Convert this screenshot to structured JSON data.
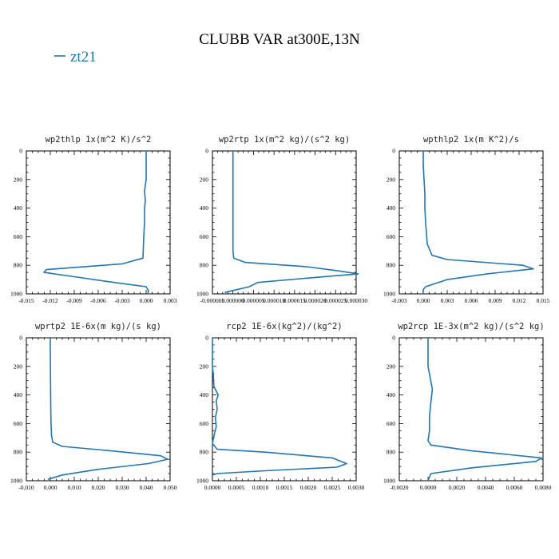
{
  "figure_title": "CLUBB VAR at300E,13N",
  "legend": {
    "label": "zt21",
    "color": "#1f77b4"
  },
  "chart_data": [
    {
      "type": "line",
      "title": "wp2thlp  1x(m^2 K)/s^2",
      "xlim": [
        -0.015,
        0.003
      ],
      "ylim": [
        1000,
        0
      ],
      "xticks": [
        -0.015,
        -0.012,
        -0.009,
        -0.006,
        -0.003,
        0.0,
        0.003
      ],
      "xtick_labels": [
        "-0.015",
        "-0.012",
        "-0.009",
        "-0.006",
        "-0.003",
        "0.000",
        "0.003"
      ],
      "yticks": [
        0,
        200,
        400,
        600,
        800,
        1000
      ],
      "ytick_labels": [
        "0",
        "200",
        "400",
        "600",
        "800",
        "1000"
      ],
      "series": [
        {
          "color": "#1f77b4",
          "x": [
            0.0,
            0.0,
            0.0,
            -0.0002,
            -0.0001,
            -0.0002,
            -0.0002,
            -0.0003,
            -0.0004,
            -0.003,
            -0.0125,
            -0.0128,
            -0.009,
            -0.004,
            0.0,
            0.0003,
            0.0002
          ],
          "y": [
            0,
            100,
            200,
            280,
            350,
            400,
            500,
            600,
            750,
            790,
            830,
            850,
            880,
            920,
            950,
            980,
            1000
          ]
        }
      ]
    },
    {
      "type": "line",
      "title": "wp2rtp  1x(m^2 kg)/(s^2 kg)",
      "xlim": [
        -5e-06,
        3e-05
      ],
      "ylim": [
        1000,
        0
      ],
      "xticks": [
        -5e-06,
        0.0,
        5e-06,
        1e-05,
        1.5e-05,
        2e-05,
        2.5e-05,
        3e-05
      ],
      "xtick_labels": [
        "-0.000005",
        "0.000000",
        "0.000005",
        "0.000010",
        "0.000015",
        "0.000020",
        "0.000025",
        "0.000030"
      ],
      "yticks": [
        0,
        200,
        400,
        600,
        800,
        1000
      ],
      "ytick_labels": [
        "0",
        "200",
        "400",
        "600",
        "800",
        "1000"
      ],
      "series": [
        {
          "color": "#1f77b4",
          "x": [
            0.0,
            0.0,
            0.0,
            0.0,
            0.0,
            2e-07,
            3e-06,
            1.8e-05,
            2.6e-05,
            3.05e-05,
            1.8e-05,
            6e-06,
            4e-06,
            -2e-06
          ],
          "y": [
            0,
            100,
            300,
            500,
            700,
            750,
            780,
            810,
            840,
            860,
            890,
            920,
            950,
            990
          ]
        }
      ]
    },
    {
      "type": "line",
      "title": "wpthlp2  1x(m K^2)/s",
      "xlim": [
        -0.003,
        0.015
      ],
      "ylim": [
        1000,
        0
      ],
      "xticks": [
        -0.003,
        0.0,
        0.003,
        0.006,
        0.009,
        0.012,
        0.015
      ],
      "xtick_labels": [
        "-0.003",
        "0.000",
        "0.003",
        "0.006",
        "0.009",
        "0.012",
        "0.015"
      ],
      "yticks": [
        0,
        200,
        400,
        600,
        800,
        1000
      ],
      "ytick_labels": [
        "0",
        "200",
        "400",
        "600",
        "800",
        "1000"
      ],
      "series": [
        {
          "color": "#1f77b4",
          "x": [
            0.0,
            0.0,
            0.0001,
            0.0002,
            0.0002,
            0.0003,
            0.0005,
            0.0011,
            0.003,
            0.0125,
            0.0138,
            0.008,
            0.003,
            0.0003,
            0.0,
            0.0
          ],
          "y": [
            0,
            100,
            200,
            300,
            400,
            500,
            650,
            730,
            760,
            800,
            825,
            860,
            900,
            950,
            970,
            1000
          ]
        }
      ]
    },
    {
      "type": "line",
      "title": "wprtp2  1E-6x(m kg)/(s kg)",
      "xlim": [
        -0.01,
        0.05
      ],
      "ylim": [
        1000,
        0
      ],
      "xticks": [
        -0.01,
        0.0,
        0.01,
        0.02,
        0.03,
        0.04,
        0.05
      ],
      "xtick_labels": [
        "-0.010",
        "0.000",
        "0.010",
        "0.020",
        "0.030",
        "0.040",
        "0.050"
      ],
      "yticks": [
        0,
        200,
        400,
        600,
        800,
        1000
      ],
      "ytick_labels": [
        "0",
        "200",
        "400",
        "600",
        "800",
        "1000"
      ],
      "series": [
        {
          "color": "#1f77b4",
          "x": [
            0.0,
            0.0,
            0.0001,
            0.0002,
            0.0003,
            0.0005,
            0.001,
            0.005,
            0.025,
            0.046,
            0.049,
            0.041,
            0.02,
            0.005,
            -0.001
          ],
          "y": [
            0,
            100,
            300,
            500,
            600,
            680,
            730,
            760,
            790,
            825,
            850,
            880,
            920,
            960,
            990
          ]
        }
      ]
    },
    {
      "type": "line",
      "title": "rcp2  1E-6x(kg^2)/(kg^2)",
      "xlim": [
        0.0,
        0.003
      ],
      "ylim": [
        1000,
        0
      ],
      "xticks": [
        0.0,
        0.0005,
        0.001,
        0.0015,
        0.002,
        0.0025,
        0.003
      ],
      "xtick_labels": [
        "0.0000",
        "0.0005",
        "0.0010",
        "0.0015",
        "0.0020",
        "0.0025",
        "0.0030"
      ],
      "yticks": [
        0,
        200,
        400,
        600,
        800,
        1000
      ],
      "ytick_labels": [
        "0",
        "200",
        "400",
        "600",
        "800",
        "1000"
      ],
      "series": [
        {
          "color": "#1f77b4",
          "x": [
            0.0,
            0.0,
            2e-05,
            3e-05,
            0.00012,
            8e-05,
            0.0001,
            6e-05,
            8e-05,
            3e-05,
            0.0,
            0.0001,
            0.0011,
            0.0025,
            0.0028,
            0.0026,
            0.0011,
            0.0001,
            0.0
          ],
          "y": [
            0,
            200,
            260,
            340,
            400,
            440,
            500,
            560,
            620,
            690,
            740,
            780,
            800,
            840,
            880,
            905,
            930,
            950,
            960
          ]
        }
      ]
    },
    {
      "type": "line",
      "title": "wp2rcp  1E-3x(m^2 kg)/(s^2 kg)",
      "xlim": [
        -0.002,
        0.008
      ],
      "ylim": [
        1000,
        0
      ],
      "xticks": [
        -0.002,
        0.0,
        0.002,
        0.004,
        0.006,
        0.008
      ],
      "xtick_labels": [
        "-0.0020",
        "0.0000",
        "0.0020",
        "0.0040",
        "0.0060",
        "0.0080"
      ],
      "yticks": [
        0,
        200,
        400,
        600,
        800,
        1000
      ],
      "ytick_labels": [
        "0",
        "200",
        "400",
        "600",
        "800",
        "1000"
      ],
      "series": [
        {
          "color": "#1f77b4",
          "x": [
            0.0,
            0.0,
            0.0003,
            0.0002,
            0.0001,
            0.0001,
            0.0,
            0.0002,
            0.003,
            0.0079,
            0.0075,
            0.003,
            0.0002,
            0.0
          ],
          "y": [
            0,
            200,
            360,
            450,
            550,
            650,
            720,
            750,
            790,
            840,
            865,
            910,
            950,
            1000
          ]
        }
      ]
    }
  ]
}
